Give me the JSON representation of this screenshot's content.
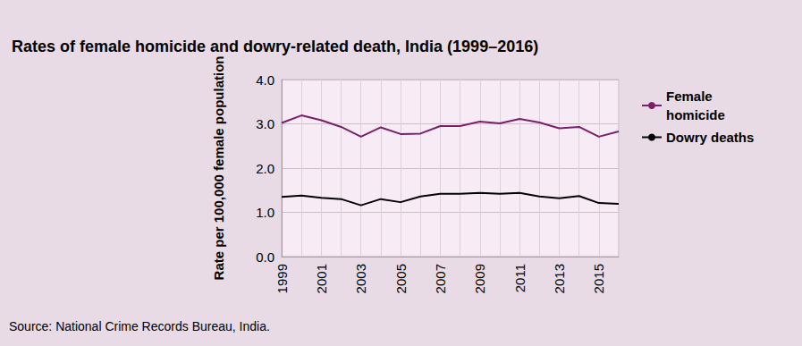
{
  "chart_data": {
    "type": "line",
    "title": "Rates of female homicide and dowry-related death, India (1999–2016)",
    "y_label": "Rate per 100,000 female population",
    "source": "Source: National Crime Records Bureau, India.",
    "categories": [
      "1999",
      null,
      "2001",
      null,
      "2003",
      null,
      "2005",
      null,
      "2007",
      null,
      "2009",
      null,
      "2011",
      null,
      "2013",
      null,
      "2015",
      null
    ],
    "series": [
      {
        "name": "Female homicide",
        "color": "#7b1f6a",
        "marker": "none",
        "values": [
          3.02,
          3.19,
          3.08,
          2.93,
          2.71,
          2.92,
          2.77,
          2.78,
          2.95,
          2.95,
          3.05,
          3.01,
          3.11,
          3.03,
          2.9,
          2.93,
          2.71,
          2.83
        ]
      },
      {
        "name": "Dowry deaths",
        "color": "#000000",
        "marker": "none",
        "values": [
          1.35,
          1.38,
          1.33,
          1.3,
          1.16,
          1.3,
          1.23,
          1.36,
          1.42,
          1.42,
          1.44,
          1.42,
          1.44,
          1.36,
          1.32,
          1.37,
          1.21,
          1.19
        ]
      }
    ],
    "ylim": [
      0,
      4
    ],
    "yticks": [
      {
        "value": 0,
        "label": "0.0"
      },
      {
        "value": 1,
        "label": "1.0"
      },
      {
        "value": 2,
        "label": "2.0"
      },
      {
        "value": 3,
        "label": "3.0"
      },
      {
        "value": 4,
        "label": "4.0"
      }
    ],
    "grid": true,
    "legend": "right"
  }
}
